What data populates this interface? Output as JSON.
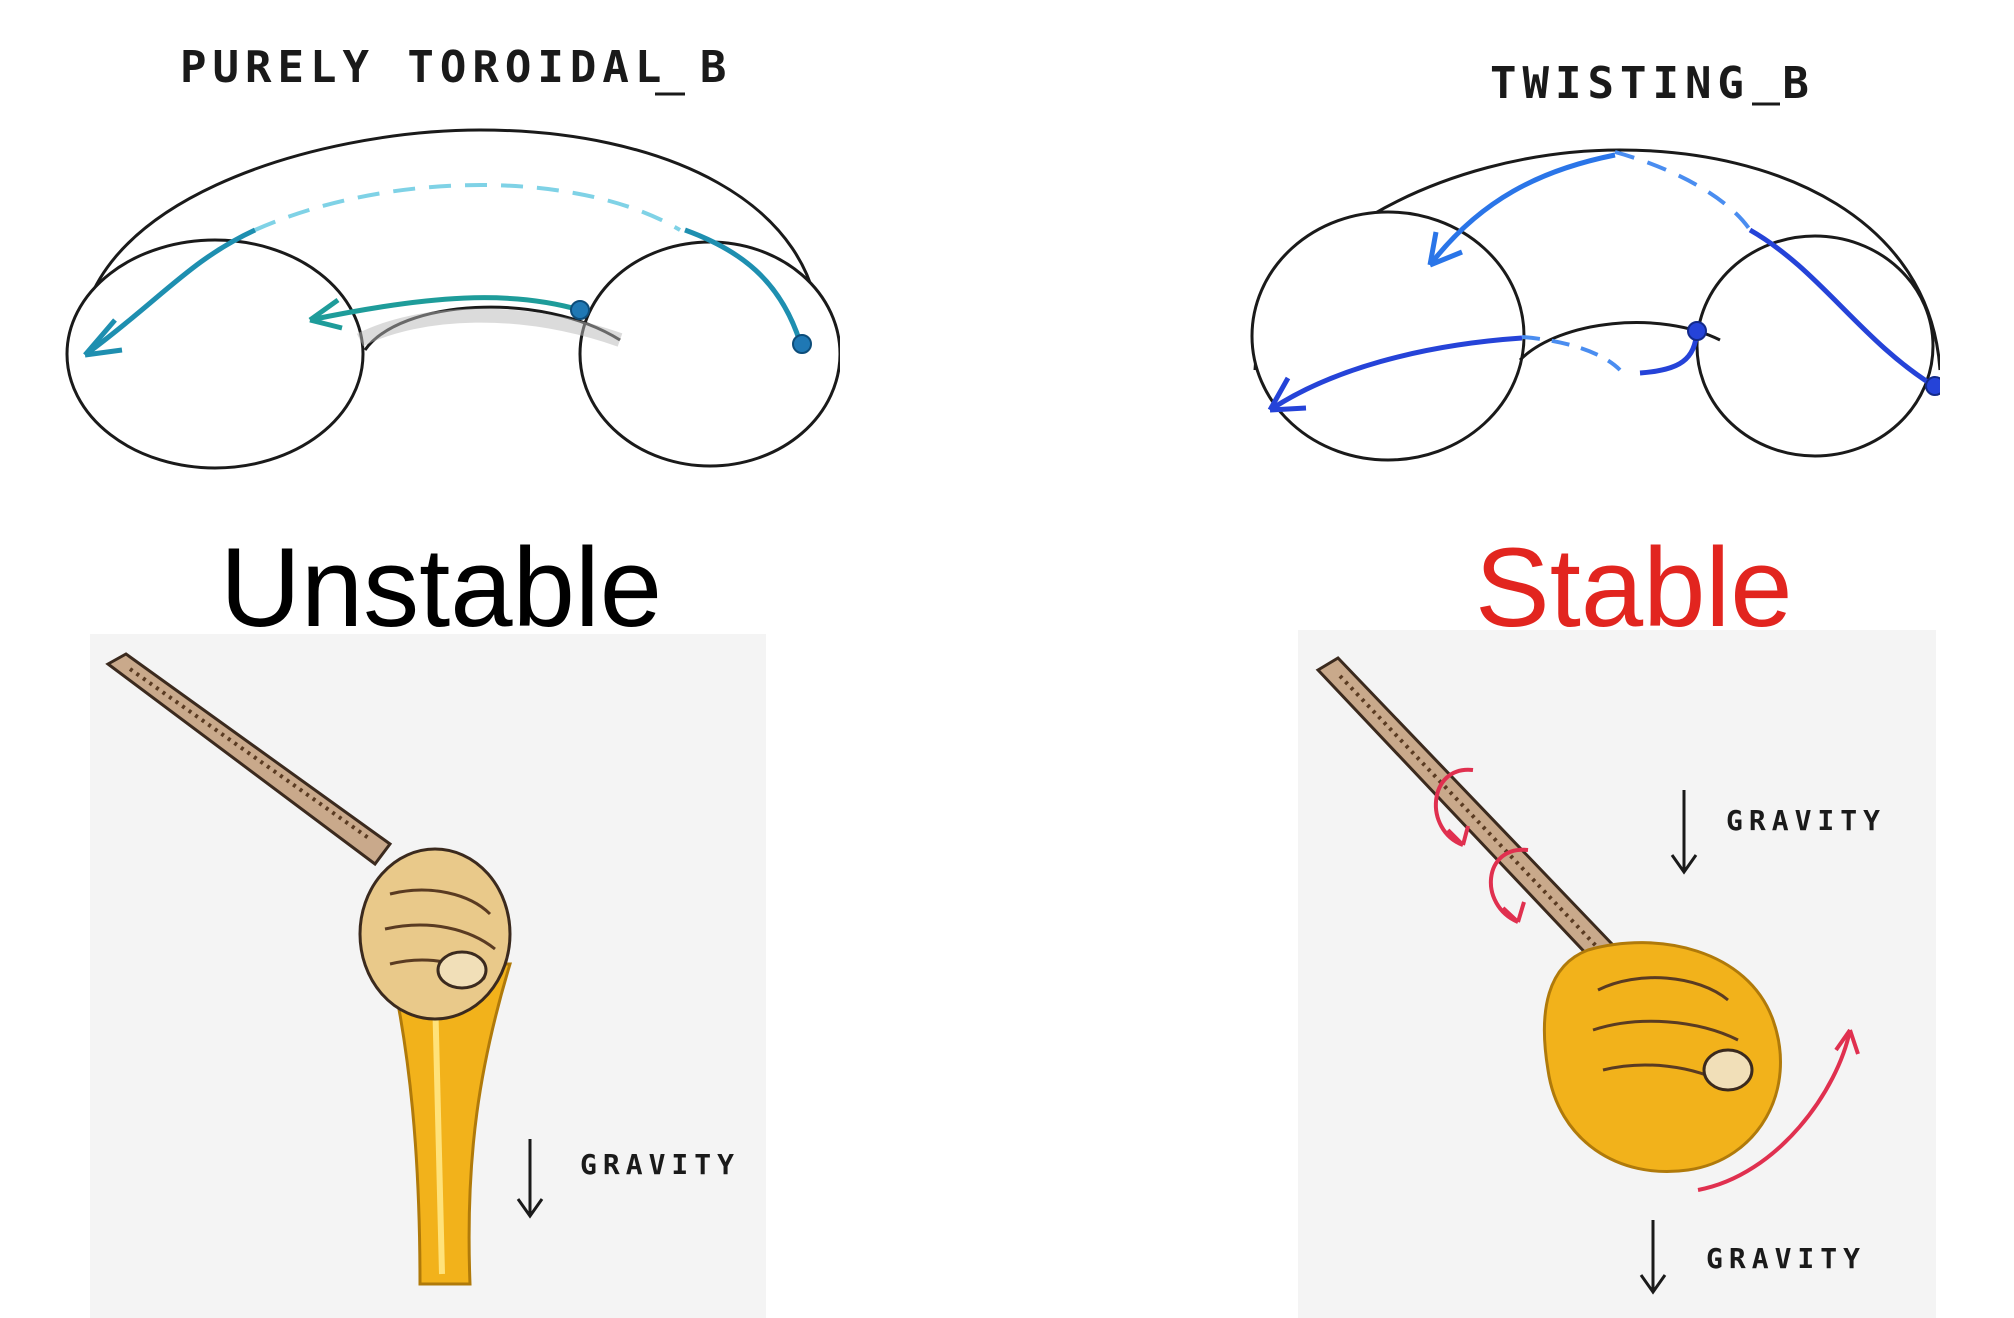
{
  "left": {
    "torus_title": "PURELY TOROIDAL B",
    "stability_label": "Unstable",
    "gravity_label": "GRAVITY"
  },
  "right": {
    "torus_title": "TWISTING B",
    "stability_label": "Stable",
    "gravity_label_top": "GRAVITY",
    "gravity_label_bottom": "GRAVITY"
  },
  "colors": {
    "unstable_text": "#000000",
    "stable_text": "#e2251f",
    "toroidal_field": "#1e8fb0",
    "twisting_field": "#2543d8",
    "honey": "#f2b21b",
    "rotation_arrow": "#e0304f",
    "background_photo": "#f4f4f4"
  }
}
